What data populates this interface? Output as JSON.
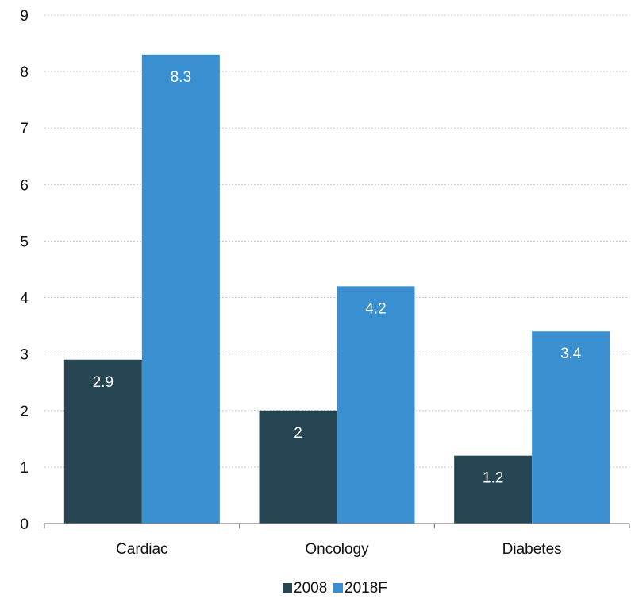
{
  "chart_data": {
    "type": "bar",
    "title": "",
    "xlabel": "",
    "ylabel": "",
    "categories": [
      "Cardiac",
      "Oncology",
      "Diabetes"
    ],
    "series": [
      {
        "name": "2008",
        "values": [
          2.9,
          2,
          1.2
        ],
        "color": "#264653"
      },
      {
        "name": "2018F",
        "values": [
          8.3,
          4.2,
          3.4
        ],
        "color": "#3a8fd0"
      }
    ],
    "data_labels": [
      [
        "2.9",
        "2",
        "1.2"
      ],
      [
        "8.3",
        "4.2",
        "3.4"
      ]
    ],
    "ylim": [
      0,
      9
    ],
    "yticks": [
      "0",
      "1",
      "2",
      "3",
      "4",
      "5",
      "6",
      "7",
      "8",
      "9"
    ],
    "grid": true,
    "legend_position": "bottom"
  }
}
